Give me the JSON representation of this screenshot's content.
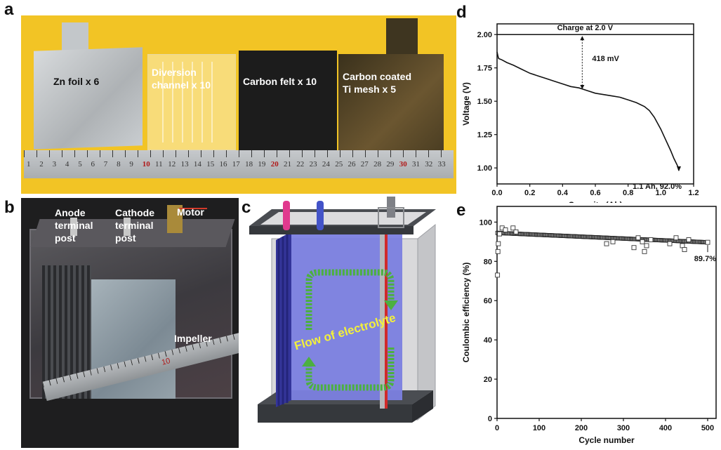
{
  "panels": {
    "a": {
      "letter": "a",
      "items": [
        "Zn foil x 6",
        "Diversion channel x 10",
        "Carbon felt x 10",
        "Carbon coated Ti mesh x 5"
      ],
      "item_lines": [
        [
          "Zn foil x 6"
        ],
        [
          "Diversion",
          "channel x 10"
        ],
        [
          "Carbon felt x 10"
        ],
        [
          "Carbon coated",
          "Ti mesh x 5"
        ]
      ],
      "ruler_numbers": [
        "1",
        "2",
        "3",
        "4",
        "5",
        "6",
        "7",
        "8",
        "9",
        "10",
        "11",
        "12",
        "13",
        "14",
        "15",
        "16",
        "17",
        "18",
        "19",
        "20",
        "21",
        "22",
        "23",
        "24",
        "25",
        "26",
        "27",
        "28",
        "29",
        "30",
        "31",
        "32",
        "33"
      ],
      "ruler_highlight": [
        "10",
        "20",
        "30"
      ],
      "colors": {
        "background": "#f2c425",
        "ruler": "#b9bcbf",
        "felt": "#1c1c1c",
        "mesh": "#5c4a26",
        "foil": "#c9cdd0"
      }
    },
    "b": {
      "letter": "b",
      "labels": {
        "anode": [
          "Anode",
          "terminal",
          "post"
        ],
        "cathode": [
          "Cathode",
          "terminal",
          "post"
        ],
        "motor": "Motor",
        "impeller": "Impeller"
      },
      "ruler_mark": "10"
    },
    "c": {
      "letter": "c",
      "flow_label": "Flow of electrolyte",
      "colors": {
        "frame": "#4a4d52",
        "plate": "#7b7fe0",
        "arrow": "#4cb040",
        "flow_text": "#f3f03a",
        "rod_pink": "#e0398e",
        "rod_blue": "#4353c8",
        "rod_red": "#d02a2a"
      }
    },
    "d": {
      "letter": "d",
      "chart_data": {
        "type": "line",
        "xlabel": "Capacity (Ah)",
        "ylabel": "Voltage (V)",
        "xlim": [
          0.0,
          1.2
        ],
        "ylim": [
          0.88,
          2.08
        ],
        "xticks": [
          "0.0",
          "0.2",
          "0.4",
          "0.6",
          "0.8",
          "1.0",
          "1.2"
        ],
        "yticks": [
          "1.00",
          "1.25",
          "1.50",
          "1.75",
          "2.00"
        ],
        "reference_line": {
          "y": 2.0,
          "label": "Charge at 2.0 V"
        },
        "annotations": {
          "gap": "418 mV",
          "gap_at_x": 0.52,
          "end": "1.1 Ah, 92.0%"
        },
        "series": [
          {
            "x": [
              0.0,
              0.005,
              0.01,
              0.03,
              0.06,
              0.1,
              0.15,
              0.2,
              0.25,
              0.3,
              0.35,
              0.4,
              0.45,
              0.5,
              0.55,
              0.6,
              0.65,
              0.7,
              0.75,
              0.8,
              0.85,
              0.9,
              0.93,
              0.96,
              1.0,
              1.03,
              1.06,
              1.08,
              1.1,
              1.11
            ],
            "y": [
              1.87,
              1.84,
              1.82,
              1.81,
              1.79,
              1.77,
              1.74,
              1.71,
              1.69,
              1.67,
              1.65,
              1.63,
              1.61,
              1.6,
              1.58,
              1.56,
              1.55,
              1.54,
              1.53,
              1.51,
              1.49,
              1.46,
              1.43,
              1.38,
              1.29,
              1.21,
              1.13,
              1.07,
              1.02,
              0.98
            ]
          }
        ]
      }
    },
    "e": {
      "letter": "e",
      "chart_data": {
        "type": "scatter",
        "xlabel": "Cycle number",
        "ylabel": "Coulombic efficiency (%)",
        "xlim": [
          0,
          520
        ],
        "ylim": [
          0,
          108
        ],
        "xticks": [
          "0",
          "100",
          "200",
          "300",
          "400",
          "500"
        ],
        "yticks": [
          "0",
          "20",
          "40",
          "60",
          "80",
          "100"
        ],
        "annotations": {
          "end": "89.7%"
        },
        "outliers": [
          {
            "x": 1,
            "y": 73
          },
          {
            "x": 2,
            "y": 85
          },
          {
            "x": 3,
            "y": 89
          },
          {
            "x": 6,
            "y": 94
          },
          {
            "x": 12,
            "y": 97
          },
          {
            "x": 20,
            "y": 96
          },
          {
            "x": 38,
            "y": 97
          },
          {
            "x": 45,
            "y": 95
          },
          {
            "x": 260,
            "y": 89
          },
          {
            "x": 275,
            "y": 90
          },
          {
            "x": 325,
            "y": 87
          },
          {
            "x": 335,
            "y": 92
          },
          {
            "x": 345,
            "y": 90
          },
          {
            "x": 350,
            "y": 85
          },
          {
            "x": 355,
            "y": 88
          },
          {
            "x": 365,
            "y": 91
          },
          {
            "x": 410,
            "y": 89
          },
          {
            "x": 425,
            "y": 92
          },
          {
            "x": 440,
            "y": 88
          },
          {
            "x": 445,
            "y": 86
          },
          {
            "x": 455,
            "y": 91
          },
          {
            "x": 500,
            "y": 89.7
          }
        ],
        "trend": {
          "start": 94.5,
          "end": 89.7,
          "n": 500
        }
      }
    }
  }
}
